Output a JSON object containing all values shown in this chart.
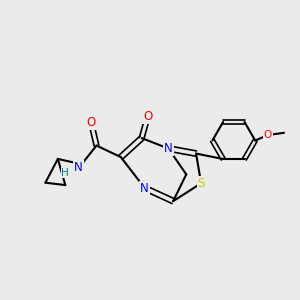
{
  "bg_color": "#ebebeb",
  "atom_colors": {
    "C": "#000000",
    "N": "#0000ff",
    "O": "#ff0000",
    "S": "#cccc00",
    "H": "#008080"
  },
  "bond_color": "#000000"
}
